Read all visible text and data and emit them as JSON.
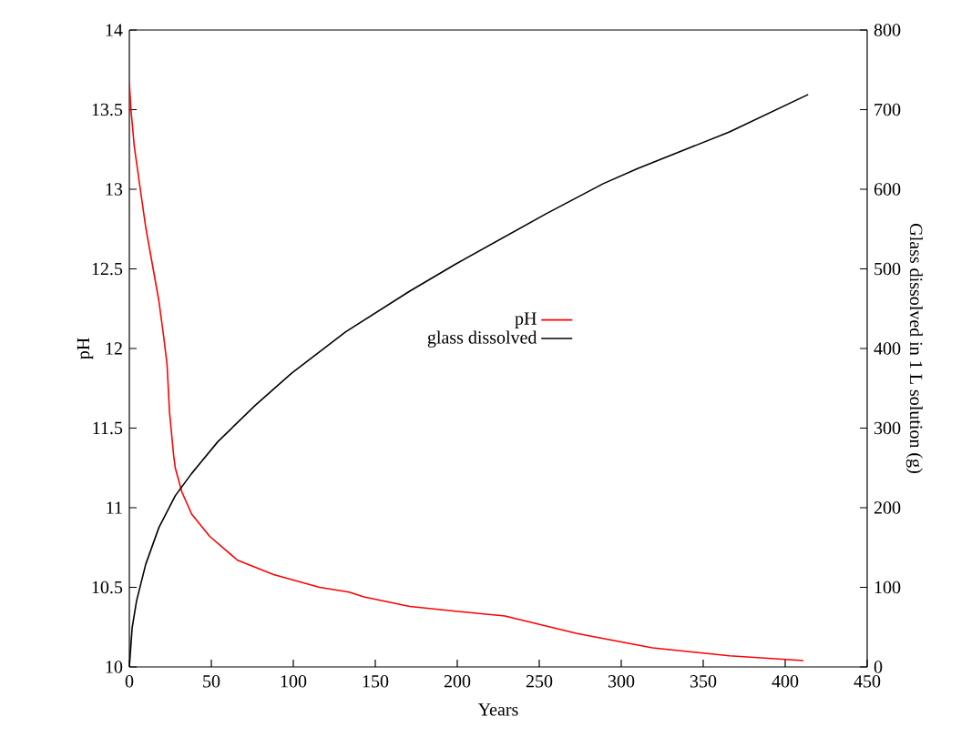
{
  "chart_data": {
    "type": "line",
    "xlabel": "Years",
    "ylabel": "pH",
    "y2label": "Glass dissolved in 1 L solution (g)",
    "xlim": [
      0,
      450
    ],
    "xticks": [
      0,
      50,
      100,
      150,
      200,
      250,
      300,
      350,
      400,
      450
    ],
    "ylim": [
      10,
      14
    ],
    "yticks": [
      10,
      10.5,
      11,
      11.5,
      12,
      12.5,
      13,
      13.5,
      14
    ],
    "y2lim": [
      0,
      800
    ],
    "y2ticks": [
      0,
      100,
      200,
      300,
      400,
      500,
      600,
      700,
      800
    ],
    "legend": "center",
    "grid": false,
    "marker": "none",
    "line_style": "solid",
    "series": [
      {
        "name": "pH",
        "color": "#ff0000",
        "axis": "y",
        "x": [
          0,
          1,
          3,
          6,
          10,
          14,
          18,
          21,
          23,
          24.5,
          27,
          28,
          32,
          38,
          49,
          66,
          88,
          116,
          134,
          143,
          171,
          199,
          229,
          273,
          319,
          366,
          411
        ],
        "values": [
          13.67,
          13.5,
          13.27,
          13.05,
          12.76,
          12.53,
          12.3,
          12.07,
          11.9,
          11.6,
          11.33,
          11.25,
          11.1,
          10.96,
          10.82,
          10.67,
          10.58,
          10.5,
          10.47,
          10.44,
          10.38,
          10.35,
          10.32,
          10.21,
          10.12,
          10.07,
          10.04
        ]
      },
      {
        "name": "glass dissolved",
        "color": "#000000",
        "axis": "y2",
        "x": [
          0,
          1.7,
          4.4,
          10,
          18,
          28,
          38,
          54,
          77,
          99,
          132,
          171,
          199,
          254,
          289,
          310,
          366,
          414
        ],
        "values": [
          0,
          49,
          83,
          129,
          175,
          215,
          243,
          283,
          329,
          369,
          421,
          472,
          506,
          569,
          607,
          626,
          672,
          719
        ]
      }
    ]
  }
}
